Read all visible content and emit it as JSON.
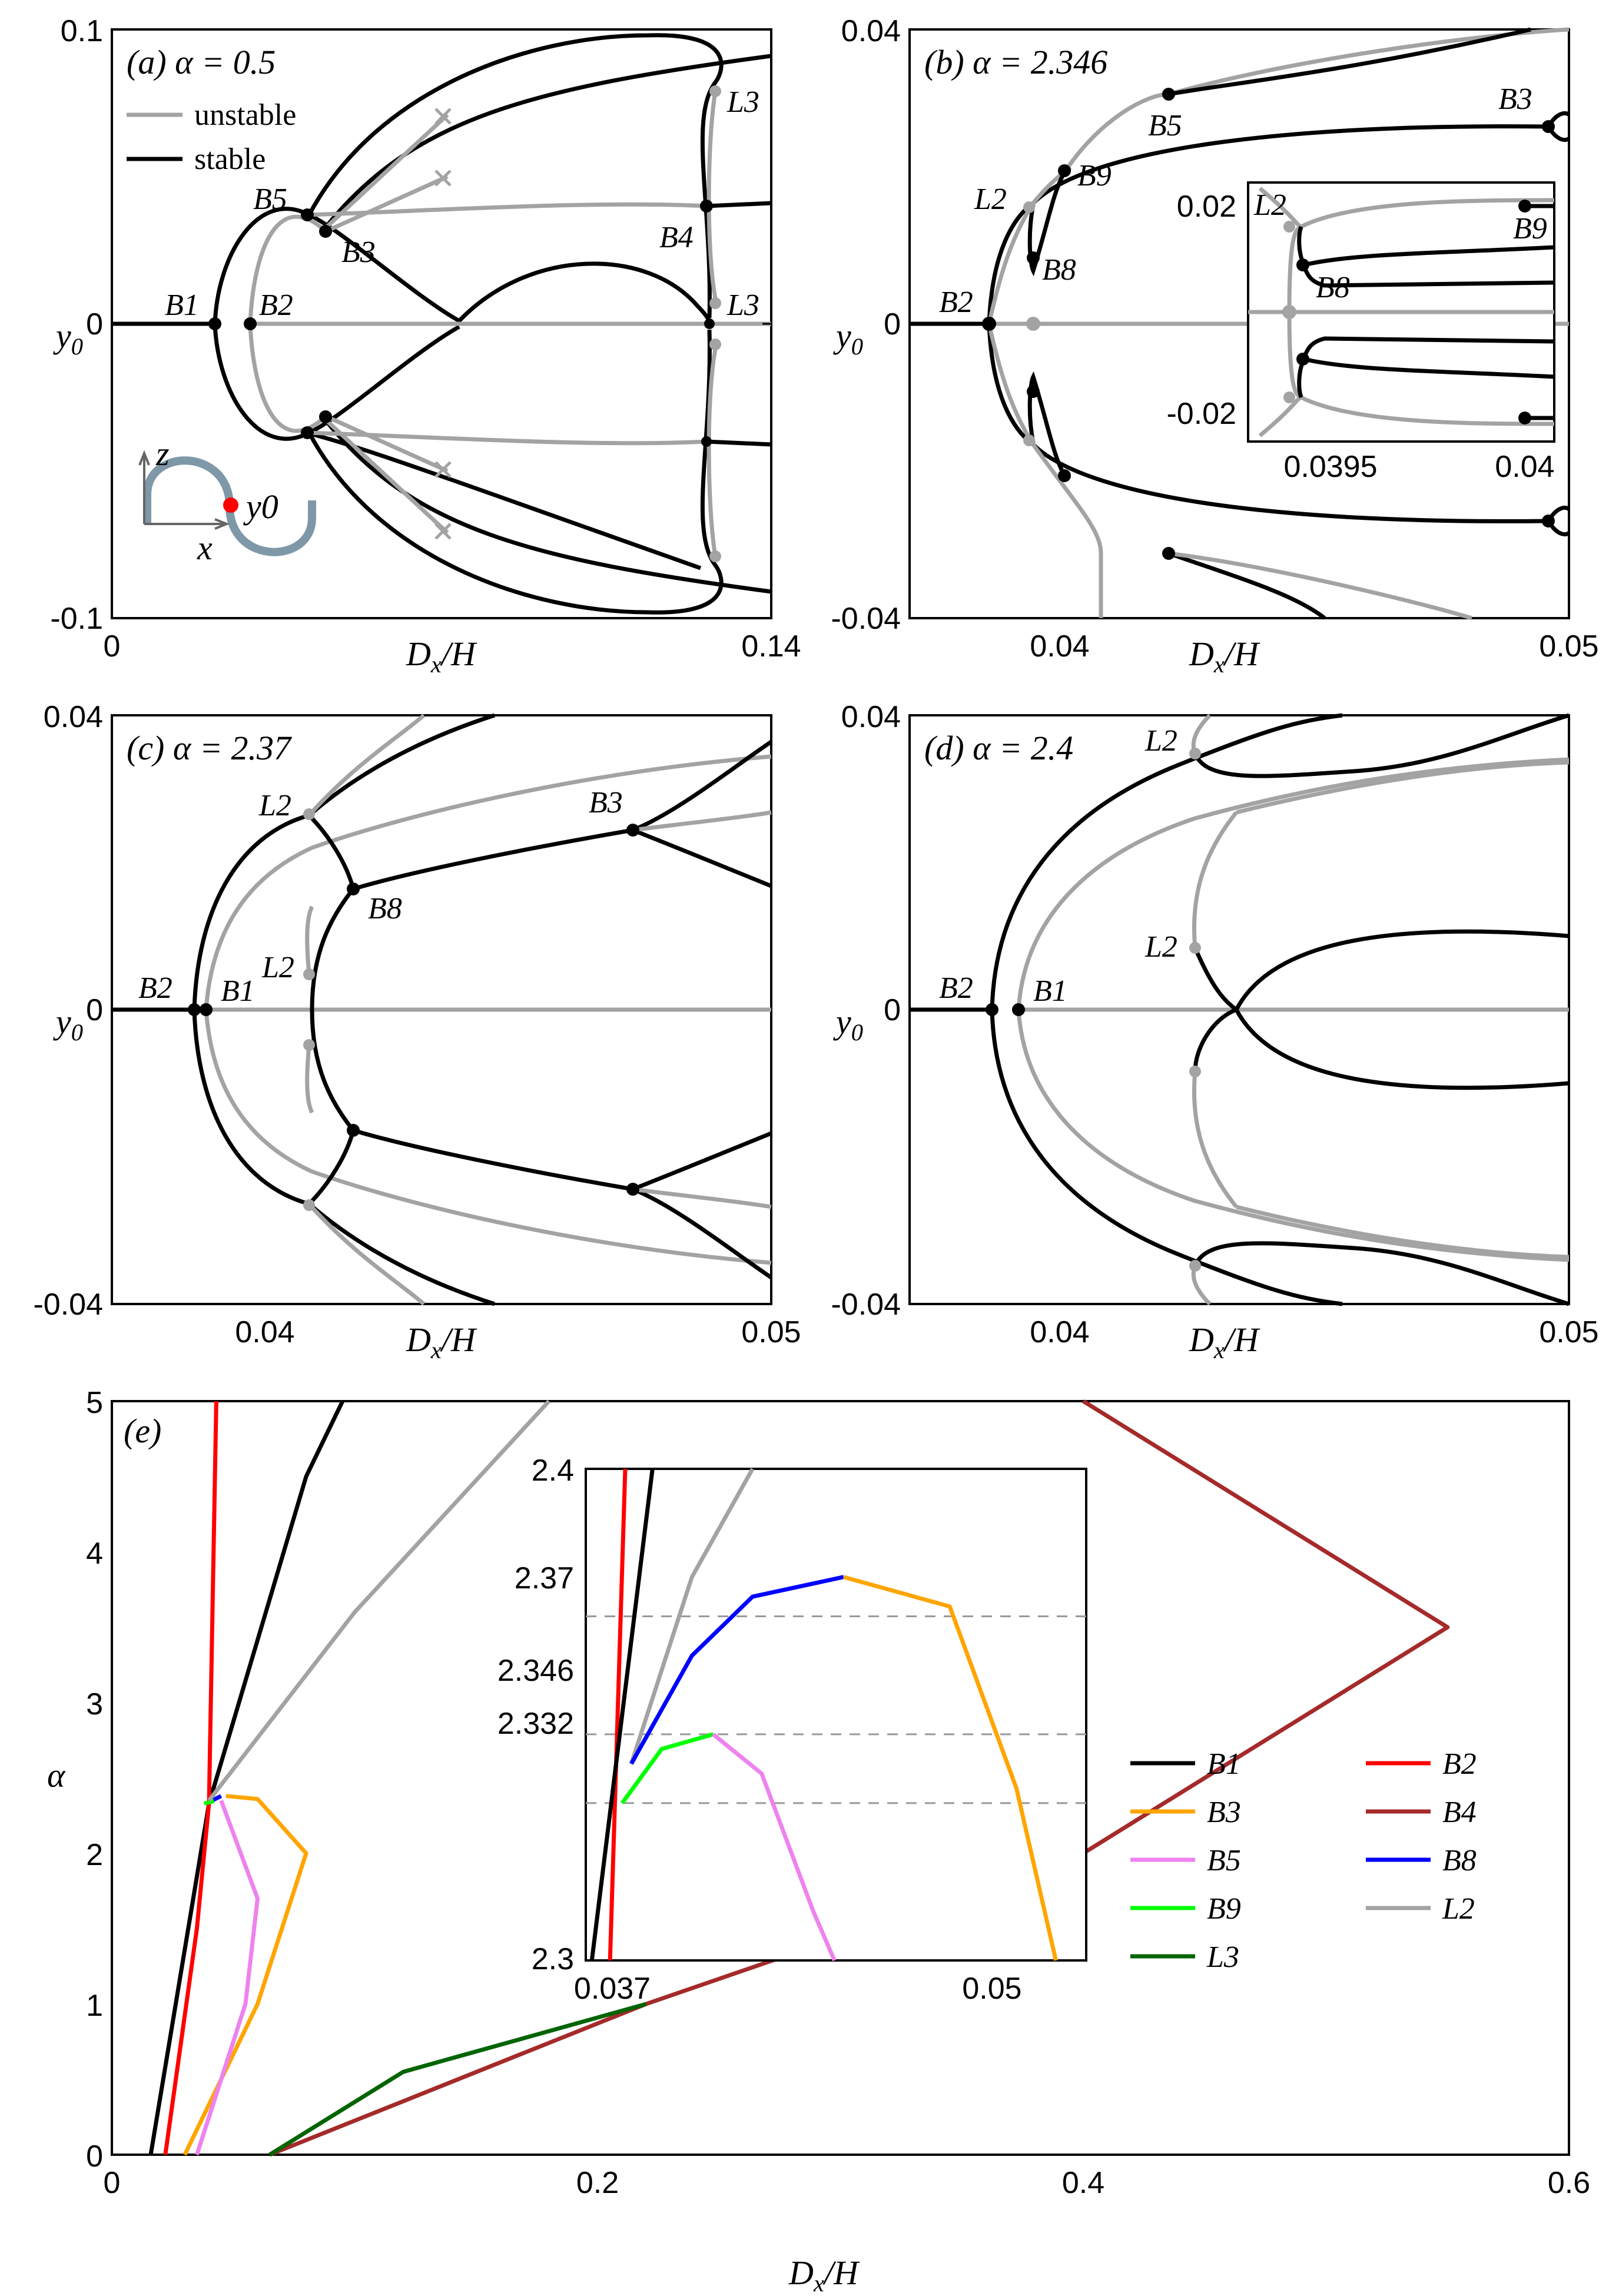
{
  "colors": {
    "stable": "#000000",
    "unstable": "#a3a3a3",
    "B1": "#000000",
    "B2": "#ff0000",
    "B3": "#ffa500",
    "B4": "#a52a2a",
    "B5": "#ee82ee",
    "B8": "#0000ff",
    "B9": "#00ff00",
    "L2": "#a3a3a3",
    "L3": "#006400",
    "beam": "#7e98a8",
    "point": "#ff0000"
  },
  "chart_data": [
    {
      "id": "a",
      "type": "line",
      "title": "(a) α = 0.5",
      "xlabel": "Dx/H",
      "ylabel": "y0",
      "xlim": [
        0,
        0.14
      ],
      "ylim": [
        -0.1,
        0.1
      ],
      "xticks": [
        "0",
        "0.14"
      ],
      "yticks": [
        "0.1",
        "0",
        "-0.1"
      ],
      "legend": [
        {
          "name": "unstable",
          "style": "unstable"
        },
        {
          "name": "stable",
          "style": "stable"
        }
      ],
      "labels": [
        "B1",
        "B2",
        "B5",
        "B3",
        "B4",
        "L3",
        "L3"
      ],
      "inset_labels": [
        "z",
        "x",
        "y0"
      ]
    },
    {
      "id": "b",
      "type": "line",
      "title": "(b) α = 2.346",
      "xlabel": "Dx/H",
      "ylabel": "y0",
      "xlim": [
        0.037,
        0.05
      ],
      "ylim": [
        -0.04,
        0.04
      ],
      "xticks": [
        "0.04",
        "0.05"
      ],
      "yticks": [
        "0.04",
        "0",
        "-0.04"
      ],
      "labels": [
        "B2",
        "L2",
        "B8",
        "B9",
        "B5",
        "B3"
      ],
      "inset": {
        "xticks": [
          "0.0395",
          "0.04"
        ],
        "yticks": [
          "0.02",
          "-0.02"
        ],
        "labels": [
          "L2",
          "B8",
          "B9"
        ]
      }
    },
    {
      "id": "c",
      "type": "line",
      "title": "(c) α = 2.37",
      "xlabel": "Dx/H",
      "ylabel": "y0",
      "xlim": [
        0.037,
        0.05
      ],
      "ylim": [
        -0.04,
        0.04
      ],
      "xticks": [
        "0.04",
        "0.05"
      ],
      "yticks": [
        "0.04",
        "0",
        "-0.04"
      ],
      "labels": [
        "B2",
        "B1",
        "L2",
        "L2",
        "B8",
        "B3"
      ]
    },
    {
      "id": "d",
      "type": "line",
      "title": "(d) α = 2.4",
      "xlabel": "Dx/H",
      "ylabel": "y0",
      "xlim": [
        0.037,
        0.05
      ],
      "ylim": [
        -0.04,
        0.04
      ],
      "xticks": [
        "0.04",
        "0.05"
      ],
      "yticks": [
        "0.04",
        "0",
        "-0.04"
      ],
      "labels": [
        "B2",
        "B1",
        "L2",
        "L2"
      ]
    },
    {
      "id": "e",
      "type": "line",
      "title": "(e)",
      "xlabel": "Dx/H",
      "ylabel": "α",
      "xlim": [
        0,
        0.6
      ],
      "ylim": [
        0,
        5
      ],
      "xticks": [
        "0",
        "0.2",
        "0.4",
        "0.6"
      ],
      "yticks": [
        "0",
        "1",
        "2",
        "3",
        "4",
        "5"
      ],
      "series": [
        {
          "name": "B1",
          "x": [
            0.016,
            0.04,
            0.08,
            0.095
          ],
          "y": [
            0,
            2.33,
            4.5,
            5
          ]
        },
        {
          "name": "B2",
          "x": [
            0.022,
            0.035,
            0.04,
            0.043
          ],
          "y": [
            0,
            1.5,
            2.33,
            5
          ]
        },
        {
          "name": "B3",
          "x": [
            0.03,
            0.06,
            0.08,
            0.06,
            0.047
          ],
          "y": [
            0,
            1.0,
            2.0,
            2.36,
            2.38
          ]
        },
        {
          "name": "B4",
          "x": [
            0.065,
            0.22,
            0.4,
            0.55,
            0.4
          ],
          "y": [
            0,
            1.0,
            2.0,
            3.5,
            5
          ]
        },
        {
          "name": "B5",
          "x": [
            0.035,
            0.055,
            0.06,
            0.045
          ],
          "y": [
            0,
            1.0,
            1.7,
            2.35
          ]
        },
        {
          "name": "B8",
          "x": [
            0.04,
            0.045
          ],
          "y": [
            2.34,
            2.38
          ]
        },
        {
          "name": "B9",
          "x": [
            0.038,
            0.042
          ],
          "y": [
            2.33,
            2.346
          ]
        },
        {
          "name": "L2",
          "x": [
            0.04,
            0.1,
            0.18
          ],
          "y": [
            2.35,
            3.6,
            5
          ]
        },
        {
          "name": "L3",
          "x": [
            0.065,
            0.12,
            0.22
          ],
          "y": [
            0,
            0.55,
            1.0
          ]
        }
      ],
      "legend_labels": [
        "B1",
        "B2",
        "B3",
        "B4",
        "B5",
        "B8",
        "B9",
        "L2",
        "L3"
      ],
      "inset": {
        "xlim": [
          0.037,
          0.0535
        ],
        "ylim": [
          2.3,
          2.4
        ],
        "xticks": [
          "0.037",
          "0.05"
        ],
        "yticks": [
          "2.4",
          "2.37",
          "2.346",
          "2.332",
          "2.3"
        ],
        "dashed_levels": [
          2.37,
          2.346,
          2.332
        ]
      }
    }
  ]
}
